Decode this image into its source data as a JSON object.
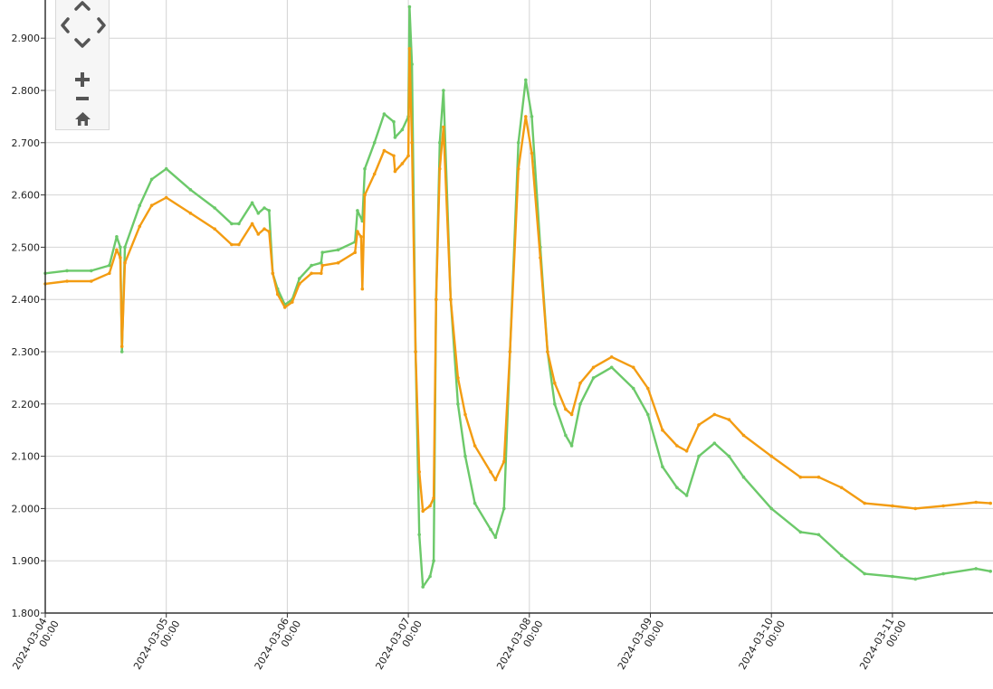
{
  "nav": {
    "pan_up_icon": "chevron-up-icon",
    "pan_left_icon": "chevron-left-icon",
    "pan_right_icon": "chevron-right-icon",
    "pan_down_icon": "chevron-down-icon",
    "zoom_in_icon": "plus-icon",
    "zoom_out_icon": "minus-icon",
    "home_icon": "home-icon",
    "icon_color": "#555555"
  },
  "chart_data": {
    "type": "line",
    "title": "",
    "xlabel": "",
    "ylabel": "",
    "grid": true,
    "legend": "none",
    "ylim": [
      1.8,
      2.96
    ],
    "xlim": [
      "2024-03-04 00:00",
      "2024-03-11 19:50"
    ],
    "y_ticks": [
      "1.800",
      "1.900",
      "2.000",
      "2.100",
      "2.200",
      "2.300",
      "2.400",
      "2.500",
      "2.600",
      "2.700",
      "2.800",
      "2.900"
    ],
    "x_ticks": [
      {
        "date": "2024-03-04",
        "time": "00:00"
      },
      {
        "date": "2024-03-05",
        "time": "00:00"
      },
      {
        "date": "2024-03-06",
        "time": "00:00"
      },
      {
        "date": "2024-03-07",
        "time": "00:00"
      },
      {
        "date": "2024-03-08",
        "time": "00:00"
      },
      {
        "date": "2024-03-09",
        "time": "00:00"
      },
      {
        "date": "2024-03-10",
        "time": "00:00"
      },
      {
        "date": "2024-03-11",
        "time": "00:00"
      }
    ],
    "series": [
      {
        "color": "#6cc96a",
        "points": [
          [
            "2024-03-04 00:00",
            2.45
          ],
          [
            "2024-03-04 04:19",
            2.455
          ],
          [
            "2024-03-04 09:07",
            2.455
          ],
          [
            "2024-03-04 12:43",
            2.465
          ],
          [
            "2024-03-04 14:10",
            2.52
          ],
          [
            "2024-03-04 14:53",
            2.5
          ],
          [
            "2024-03-04 15:12",
            2.3
          ],
          [
            "2024-03-04 15:48",
            2.5
          ],
          [
            "2024-03-04 18:43",
            2.58
          ],
          [
            "2024-03-04 21:07",
            2.63
          ],
          [
            "2024-03-05 00:00",
            2.65
          ],
          [
            "2024-03-05 04:48",
            2.61
          ],
          [
            "2024-03-05 09:36",
            2.575
          ],
          [
            "2024-03-05 12:58",
            2.545
          ],
          [
            "2024-03-05 14:24",
            2.545
          ],
          [
            "2024-03-05 17:02",
            2.585
          ],
          [
            "2024-03-05 18:14",
            2.565
          ],
          [
            "2024-03-05 19:26",
            2.575
          ],
          [
            "2024-03-05 20:24",
            2.57
          ],
          [
            "2024-03-05 21:07",
            2.45
          ],
          [
            "2024-03-05 22:05",
            2.42
          ],
          [
            "2024-03-05 23:31",
            2.39
          ],
          [
            "2024-03-06 00:58",
            2.4
          ],
          [
            "2024-03-06 02:24",
            2.44
          ],
          [
            "2024-03-06 04:48",
            2.465
          ],
          [
            "2024-03-06 06:43",
            2.47
          ],
          [
            "2024-03-06 06:58",
            2.49
          ],
          [
            "2024-03-06 10:05",
            2.495
          ],
          [
            "2024-03-06 13:26",
            2.51
          ],
          [
            "2024-03-06 13:55",
            2.57
          ],
          [
            "2024-03-06 14:53",
            2.55
          ],
          [
            "2024-03-06 15:22",
            2.65
          ],
          [
            "2024-03-06 17:17",
            2.7
          ],
          [
            "2024-03-06 19:12",
            2.755
          ],
          [
            "2024-03-06 21:07",
            2.74
          ],
          [
            "2024-03-06 21:22",
            2.71
          ],
          [
            "2024-03-06 22:48",
            2.725
          ],
          [
            "2024-03-07 00:00",
            2.75
          ],
          [
            "2024-03-07 00:14",
            2.96
          ],
          [
            "2024-03-07 00:43",
            2.85
          ],
          [
            "2024-03-07 01:26",
            2.3
          ],
          [
            "2024-03-07 02:10",
            1.95
          ],
          [
            "2024-03-07 02:53",
            1.85
          ],
          [
            "2024-03-07 04:19",
            1.87
          ],
          [
            "2024-03-07 05:02",
            1.9
          ],
          [
            "2024-03-07 05:31",
            2.4
          ],
          [
            "2024-03-07 06:14",
            2.7
          ],
          [
            "2024-03-07 06:58",
            2.8
          ],
          [
            "2024-03-07 08:24",
            2.4
          ],
          [
            "2024-03-07 09:50",
            2.2
          ],
          [
            "2024-03-07 11:17",
            2.1
          ],
          [
            "2024-03-07 13:12",
            2.01
          ],
          [
            "2024-03-07 16:19",
            1.96
          ],
          [
            "2024-03-07 17:17",
            1.945
          ],
          [
            "2024-03-07 18:58",
            2.0
          ],
          [
            "2024-03-07 20:10",
            2.3
          ],
          [
            "2024-03-07 21:50",
            2.7
          ],
          [
            "2024-03-07 23:17",
            2.82
          ],
          [
            "2024-03-08 00:29",
            2.75
          ],
          [
            "2024-03-08 02:10",
            2.5
          ],
          [
            "2024-03-08 03:36",
            2.3
          ],
          [
            "2024-03-08 05:02",
            2.2
          ],
          [
            "2024-03-08 07:12",
            2.14
          ],
          [
            "2024-03-08 08:24",
            2.12
          ],
          [
            "2024-03-08 10:05",
            2.2
          ],
          [
            "2024-03-08 12:43",
            2.25
          ],
          [
            "2024-03-08 16:19",
            2.27
          ],
          [
            "2024-03-08 20:38",
            2.23
          ],
          [
            "2024-03-08 23:31",
            2.18
          ],
          [
            "2024-03-09 02:24",
            2.08
          ],
          [
            "2024-03-09 05:17",
            2.04
          ],
          [
            "2024-03-09 07:12",
            2.025
          ],
          [
            "2024-03-09 09:36",
            2.1
          ],
          [
            "2024-03-09 12:43",
            2.125
          ],
          [
            "2024-03-09 15:36",
            2.1
          ],
          [
            "2024-03-09 18:29",
            2.06
          ],
          [
            "2024-03-10 00:00",
            2.0
          ],
          [
            "2024-03-10 05:46",
            1.955
          ],
          [
            "2024-03-10 09:22",
            1.95
          ],
          [
            "2024-03-10 13:55",
            1.91
          ],
          [
            "2024-03-10 18:29",
            1.875
          ],
          [
            "2024-03-11 00:00",
            1.87
          ],
          [
            "2024-03-11 04:34",
            1.865
          ],
          [
            "2024-03-11 10:05",
            1.875
          ],
          [
            "2024-03-11 16:34",
            1.885
          ],
          [
            "2024-03-11 19:26",
            1.88
          ]
        ]
      },
      {
        "color": "#f39c12",
        "points": [
          [
            "2024-03-04 00:00",
            2.43
          ],
          [
            "2024-03-04 04:19",
            2.435
          ],
          [
            "2024-03-04 09:07",
            2.435
          ],
          [
            "2024-03-04 12:43",
            2.45
          ],
          [
            "2024-03-04 14:10",
            2.495
          ],
          [
            "2024-03-04 14:53",
            2.48
          ],
          [
            "2024-03-04 15:12",
            2.31
          ],
          [
            "2024-03-04 15:48",
            2.47
          ],
          [
            "2024-03-04 18:43",
            2.54
          ],
          [
            "2024-03-04 21:07",
            2.58
          ],
          [
            "2024-03-05 00:00",
            2.595
          ],
          [
            "2024-03-05 04:48",
            2.565
          ],
          [
            "2024-03-05 09:36",
            2.535
          ],
          [
            "2024-03-05 12:58",
            2.505
          ],
          [
            "2024-03-05 14:24",
            2.505
          ],
          [
            "2024-03-05 17:02",
            2.545
          ],
          [
            "2024-03-05 18:14",
            2.525
          ],
          [
            "2024-03-05 19:26",
            2.535
          ],
          [
            "2024-03-05 20:24",
            2.53
          ],
          [
            "2024-03-05 21:07",
            2.45
          ],
          [
            "2024-03-05 22:05",
            2.41
          ],
          [
            "2024-03-05 23:31",
            2.385
          ],
          [
            "2024-03-06 00:58",
            2.395
          ],
          [
            "2024-03-06 02:24",
            2.43
          ],
          [
            "2024-03-06 04:48",
            2.45
          ],
          [
            "2024-03-06 06:43",
            2.45
          ],
          [
            "2024-03-06 06:58",
            2.465
          ],
          [
            "2024-03-06 10:05",
            2.47
          ],
          [
            "2024-03-06 13:26",
            2.49
          ],
          [
            "2024-03-06 13:55",
            2.53
          ],
          [
            "2024-03-06 14:38",
            2.52
          ],
          [
            "2024-03-06 14:53",
            2.42
          ],
          [
            "2024-03-06 15:22",
            2.6
          ],
          [
            "2024-03-06 17:17",
            2.64
          ],
          [
            "2024-03-06 19:12",
            2.685
          ],
          [
            "2024-03-06 21:07",
            2.675
          ],
          [
            "2024-03-06 21:22",
            2.645
          ],
          [
            "2024-03-06 22:48",
            2.66
          ],
          [
            "2024-03-07 00:00",
            2.675
          ],
          [
            "2024-03-07 00:14",
            2.88
          ],
          [
            "2024-03-07 00:43",
            2.7
          ],
          [
            "2024-03-07 01:26",
            2.3
          ],
          [
            "2024-03-07 02:10",
            2.07
          ],
          [
            "2024-03-07 02:53",
            1.995
          ],
          [
            "2024-03-07 04:19",
            2.005
          ],
          [
            "2024-03-07 05:02",
            2.02
          ],
          [
            "2024-03-07 05:31",
            2.4
          ],
          [
            "2024-03-07 06:14",
            2.65
          ],
          [
            "2024-03-07 06:58",
            2.73
          ],
          [
            "2024-03-07 08:24",
            2.4
          ],
          [
            "2024-03-07 09:50",
            2.25
          ],
          [
            "2024-03-07 11:17",
            2.18
          ],
          [
            "2024-03-07 13:12",
            2.12
          ],
          [
            "2024-03-07 16:19",
            2.07
          ],
          [
            "2024-03-07 17:17",
            2.055
          ],
          [
            "2024-03-07 18:58",
            2.09
          ],
          [
            "2024-03-07 20:10",
            2.3
          ],
          [
            "2024-03-07 21:50",
            2.65
          ],
          [
            "2024-03-07 23:17",
            2.75
          ],
          [
            "2024-03-08 00:29",
            2.68
          ],
          [
            "2024-03-08 02:10",
            2.48
          ],
          [
            "2024-03-08 03:36",
            2.3
          ],
          [
            "2024-03-08 05:02",
            2.24
          ],
          [
            "2024-03-08 07:12",
            2.19
          ],
          [
            "2024-03-08 08:24",
            2.18
          ],
          [
            "2024-03-08 10:05",
            2.24
          ],
          [
            "2024-03-08 12:43",
            2.27
          ],
          [
            "2024-03-08 16:19",
            2.29
          ],
          [
            "2024-03-08 20:38",
            2.27
          ],
          [
            "2024-03-08 23:31",
            2.23
          ],
          [
            "2024-03-09 02:24",
            2.15
          ],
          [
            "2024-03-09 05:17",
            2.12
          ],
          [
            "2024-03-09 07:12",
            2.11
          ],
          [
            "2024-03-09 09:36",
            2.16
          ],
          [
            "2024-03-09 12:43",
            2.18
          ],
          [
            "2024-03-09 15:36",
            2.17
          ],
          [
            "2024-03-09 18:29",
            2.14
          ],
          [
            "2024-03-10 00:00",
            2.1
          ],
          [
            "2024-03-10 05:46",
            2.06
          ],
          [
            "2024-03-10 09:22",
            2.06
          ],
          [
            "2024-03-10 13:55",
            2.04
          ],
          [
            "2024-03-10 18:29",
            2.01
          ],
          [
            "2024-03-11 00:00",
            2.005
          ],
          [
            "2024-03-11 04:34",
            2.0
          ],
          [
            "2024-03-11 10:05",
            2.005
          ],
          [
            "2024-03-11 16:34",
            2.012
          ],
          [
            "2024-03-11 19:26",
            2.01
          ]
        ]
      }
    ]
  }
}
